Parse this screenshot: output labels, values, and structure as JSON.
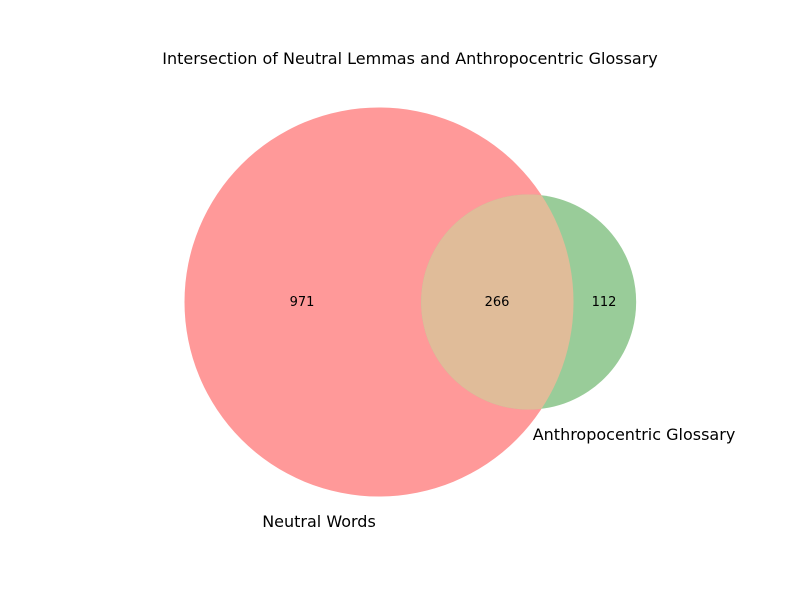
{
  "chart_data": {
    "type": "venn",
    "title": "Intersection of Neutral Lemmas and Anthropocentric Glossary",
    "sets": [
      {
        "name": "Neutral Words",
        "only": 971,
        "color": "#ff9999"
      },
      {
        "name": "Anthropocentric Glossary",
        "only": 112,
        "color": "#99cc99"
      }
    ],
    "intersection": {
      "value": 266,
      "color": "#e0bc99"
    }
  }
}
